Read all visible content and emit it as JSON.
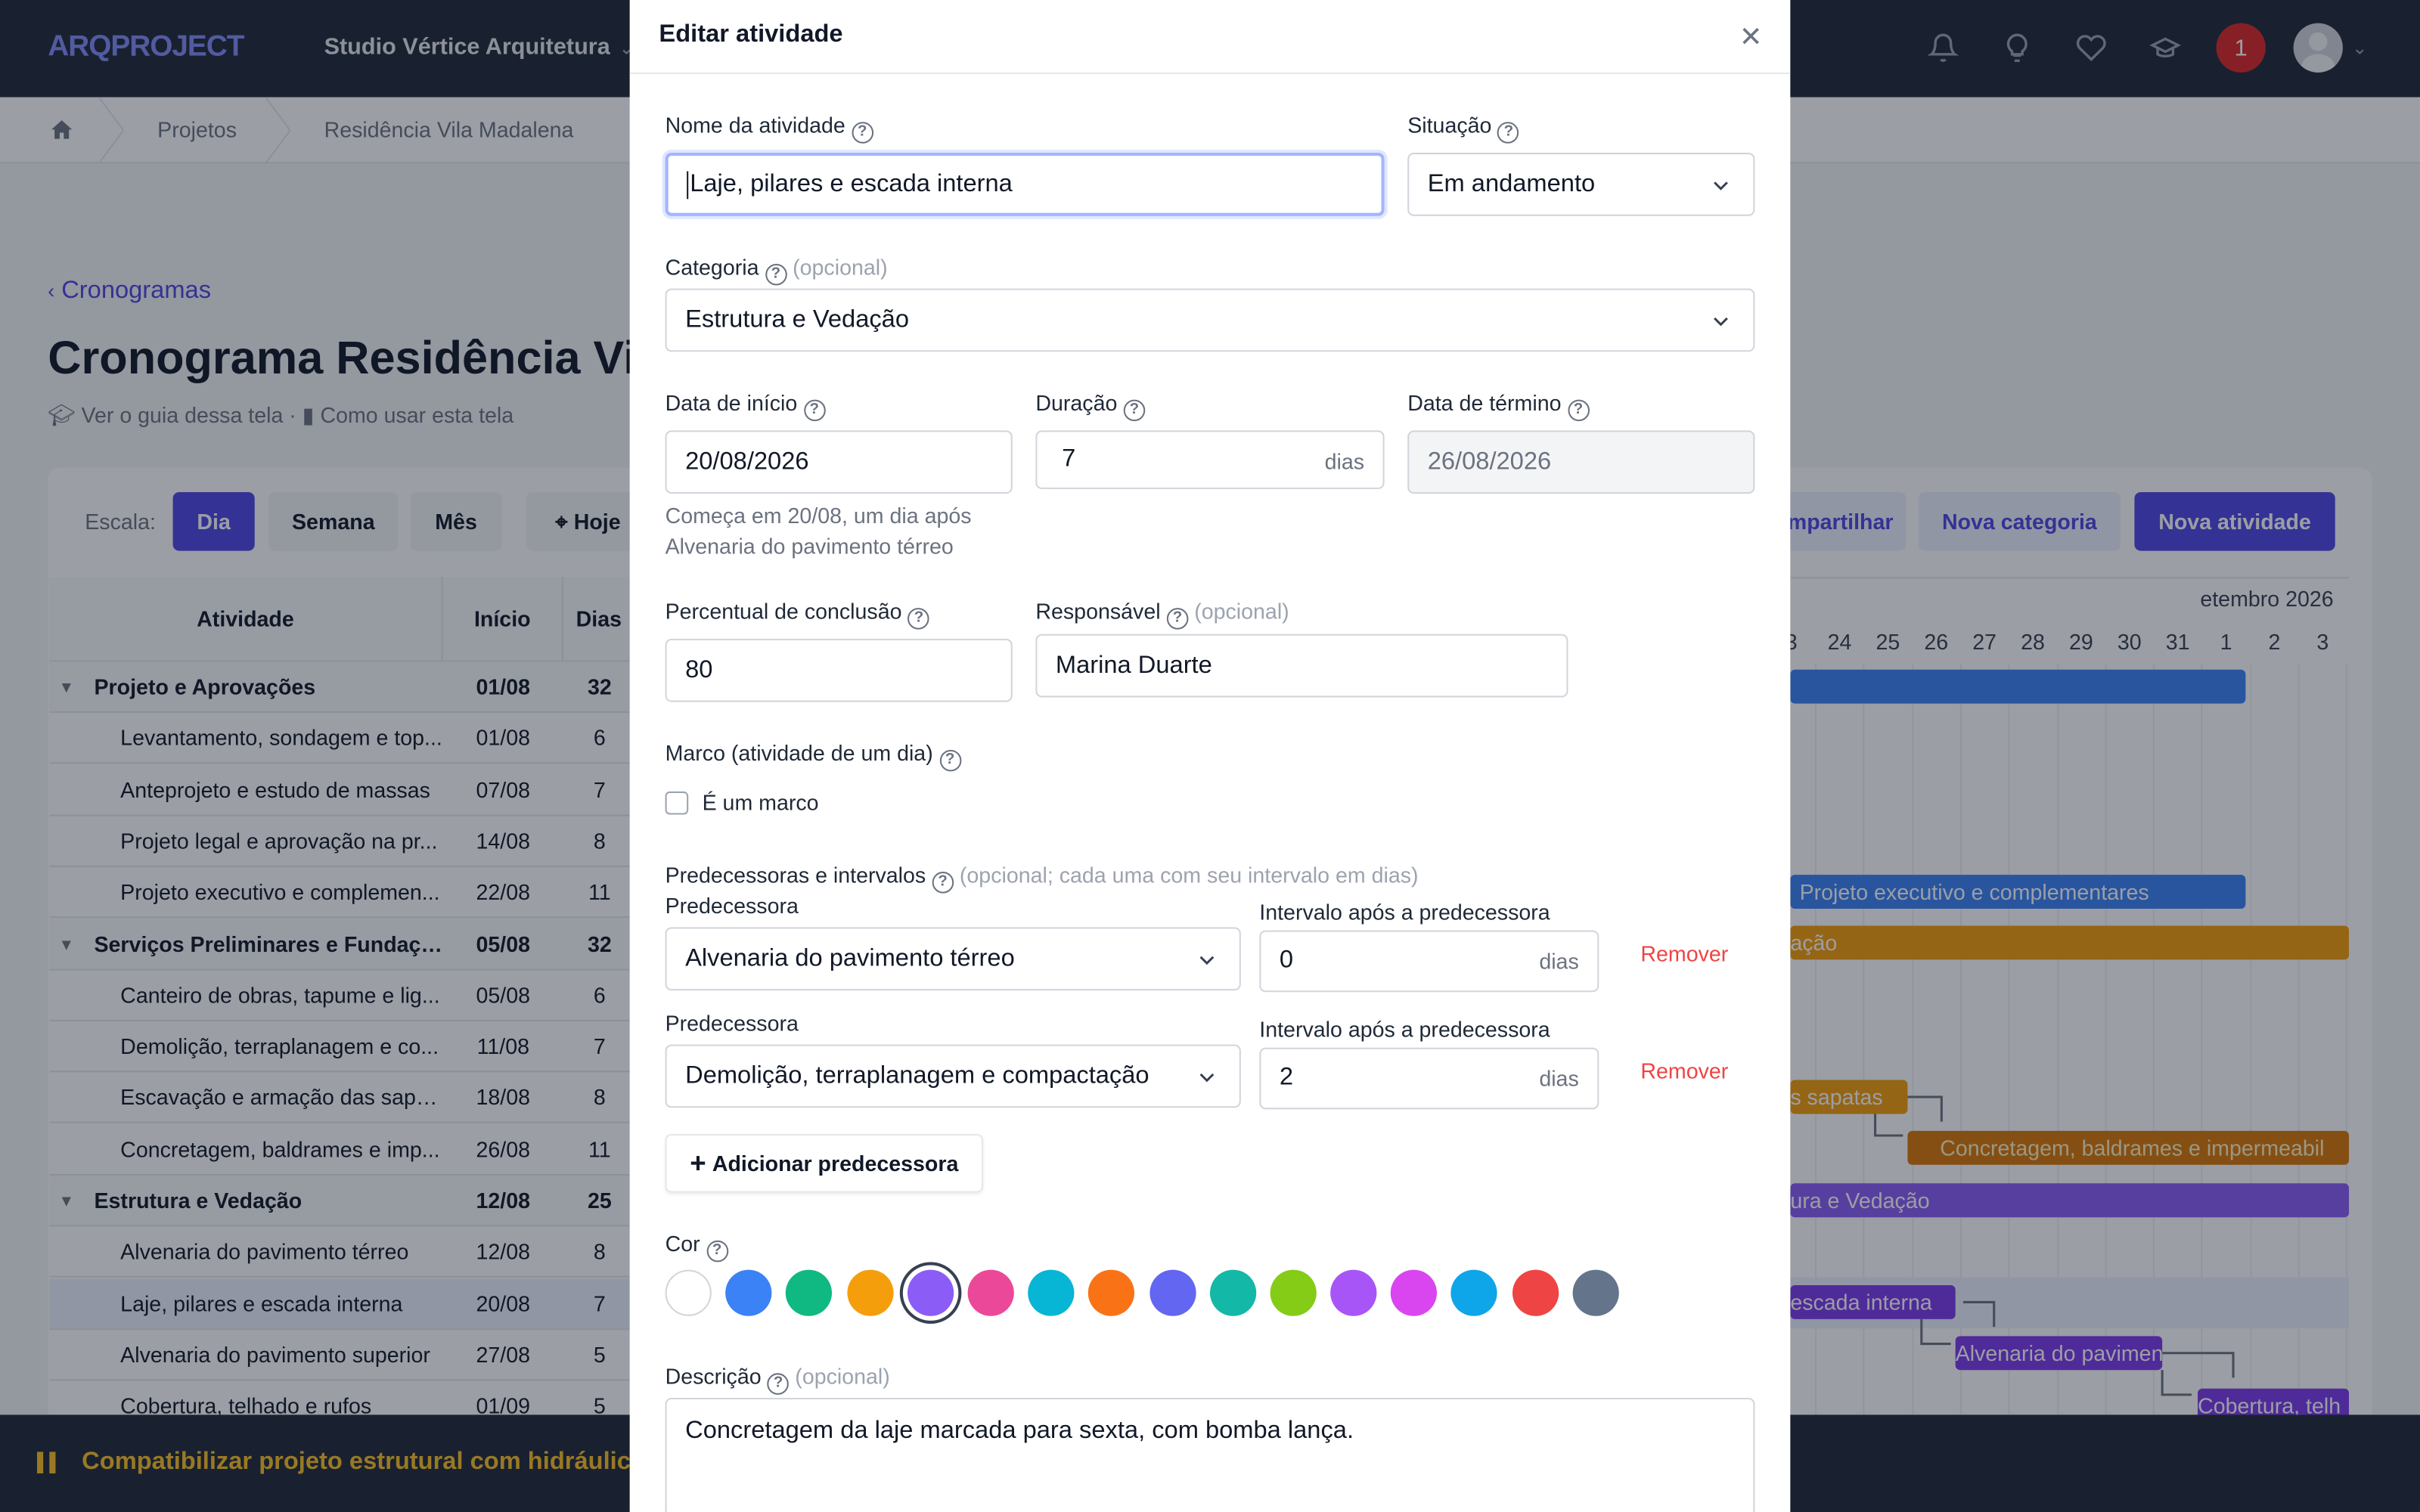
{
  "app": {
    "logo": "ARQPROJECT",
    "org": "Studio Vértice Arquitetura",
    "notif_count": "1"
  },
  "breadcrumb": [
    "Projetos",
    "Residência Vila Madalena"
  ],
  "back_label": "Cronogramas",
  "page_title": "Cronograma Residência Vi",
  "guides": {
    "guide": "Ver o guia dessa tela",
    "howto": "Como usar esta tela"
  },
  "toolbar": {
    "scale_label": "Escala:",
    "day": "Dia",
    "week": "Semana",
    "month": "Mês",
    "today": "Hoje",
    "share": "mpartilhar",
    "new_category": "Nova categoria",
    "new_activity": "Nova atividade"
  },
  "table": {
    "headers": {
      "activity": "Atividade",
      "start": "Início",
      "days": "Dias"
    },
    "rows": [
      {
        "name": "Projeto e Aprovações",
        "start": "01/08",
        "days": "32",
        "group": true
      },
      {
        "name": "Levantamento, sondagem e top...",
        "start": "01/08",
        "days": "6"
      },
      {
        "name": "Anteprojeto e estudo de massas",
        "start": "07/08",
        "days": "7"
      },
      {
        "name": "Projeto legal e aprovação na pr...",
        "start": "14/08",
        "days": "8"
      },
      {
        "name": "Projeto executivo e complemen...",
        "start": "22/08",
        "days": "11"
      },
      {
        "name": "Serviços Preliminares e Fundação",
        "start": "05/08",
        "days": "32",
        "group": true
      },
      {
        "name": "Canteiro de obras, tapume e lig...",
        "start": "05/08",
        "days": "6"
      },
      {
        "name": "Demolição, terraplanagem e co...",
        "start": "11/08",
        "days": "7"
      },
      {
        "name": "Escavação e armação das sapa...",
        "start": "18/08",
        "days": "8"
      },
      {
        "name": "Concretagem, baldrames e imp...",
        "start": "26/08",
        "days": "11"
      },
      {
        "name": "Estrutura e Vedação",
        "start": "12/08",
        "days": "25",
        "group": true
      },
      {
        "name": "Alvenaria do pavimento térreo",
        "start": "12/08",
        "days": "8"
      },
      {
        "name": "Laje, pilares e escada interna",
        "start": "20/08",
        "days": "7",
        "selected": true
      },
      {
        "name": "Alvenaria do pavimento superior",
        "start": "27/08",
        "days": "5"
      },
      {
        "name": "Cobertura, telhado e rufos",
        "start": "01/09",
        "days": "5"
      }
    ]
  },
  "gantt": {
    "month_label": "etembro 2026",
    "days": [
      "3",
      "24",
      "25",
      "26",
      "27",
      "28",
      "29",
      "30",
      "31",
      "1",
      "2",
      "3"
    ],
    "bars": {
      "b1": "Projeto executivo e complementares",
      "b2": "ação",
      "b3": "s sapatas",
      "b4": "Concretagem, baldrames e impermeabil",
      "b5": "ura e Vedação",
      "b6": "escada interna",
      "b7": "Alvenaria do pavimento",
      "b8": "Cobertura, telh"
    }
  },
  "footer": {
    "text": "Compatibilizar projeto estrutural com hidráulica"
  },
  "modal": {
    "title": "Editar atividade",
    "name_label": "Nome da atividade",
    "name_value": "Laje, pilares e escada interna",
    "status_label": "Situação",
    "status_value": "Em andamento",
    "category_label": "Categoria",
    "optional": "(opcional)",
    "category_value": "Estrutura e Vedação",
    "start_label": "Data de início",
    "start_value": "20/08/2026",
    "start_hint": "Começa em 20/08, um dia após Alvenaria do pavimento térreo",
    "duration_label": "Duração",
    "duration_value": "7",
    "days_unit": "dias",
    "end_label": "Data de término",
    "end_value": "26/08/2026",
    "percent_label": "Percentual de conclusão",
    "percent_value": "80",
    "owner_label": "Responsável",
    "owner_value": "Marina Duarte",
    "milestone_label": "Marco (atividade de um dia)",
    "milestone_check": "É um marco",
    "preds_label": "Predecessoras e intervalos",
    "preds_hint": "(opcional; cada uma com seu intervalo em dias)",
    "pred_label": "Predecessora",
    "interval_label": "Intervalo após a predecessora",
    "preds": [
      {
        "name": "Alvenaria do pavimento térreo",
        "interval": "0"
      },
      {
        "name": "Demolição, terraplanagem e compactação",
        "interval": "2"
      }
    ],
    "remove": "Remover",
    "add_pred": "Adicionar predecessora",
    "color_label": "Cor",
    "colors": [
      "#ffffff",
      "#3b82f6",
      "#10b981",
      "#f59e0b",
      "#8b5cf6",
      "#ec4899",
      "#06b6d4",
      "#f97316",
      "#6366f1",
      "#14b8a6",
      "#84cc16",
      "#a855f7",
      "#d946ef",
      "#0ea5e9",
      "#ef4444",
      "#64748b"
    ],
    "desc_label": "Descrição",
    "desc_value": "Concretagem da laje marcada para sexta, com bomba lança."
  }
}
